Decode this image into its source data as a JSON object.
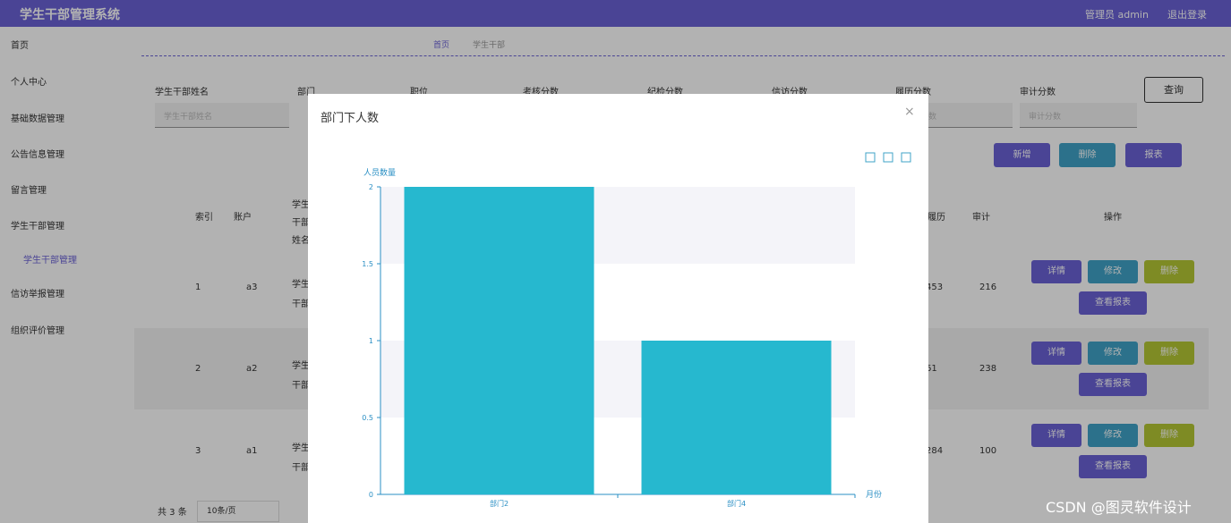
{
  "header": {
    "title": "学生干部管理系统",
    "user": "管理员 admin",
    "logout": "退出登录"
  },
  "sidebar": {
    "items": [
      "首页",
      "个人中心",
      "基础数据管理",
      "公告信息管理",
      "留言管理",
      "学生干部管理",
      "学生干部管理",
      "信访举报管理",
      "组织评价管理"
    ]
  },
  "breadcrumb": [
    "首页",
    "学生干部"
  ],
  "filters": {
    "labels": [
      "学生干部姓名",
      "部门",
      "职位",
      "考核分数",
      "纪检分数",
      "信访分数",
      "履历分数",
      "审计分数"
    ],
    "placeholders": [
      "学生干部姓名",
      "履历分数",
      "审计分数"
    ],
    "query": "查询"
  },
  "toolbar": [
    "新增",
    "删除",
    "报表"
  ],
  "table": {
    "headers": [
      "索引",
      "账户",
      "学生干部姓名",
      "履历",
      "审计",
      "操作"
    ],
    "rows": [
      [
        1,
        "a3",
        "学生干部姓名",
        453,
        216
      ],
      [
        2,
        "a2",
        "学生干部姓名",
        61,
        238
      ],
      [
        3,
        "a1",
        "学生干部姓名",
        284,
        100
      ]
    ],
    "actions": [
      "详情",
      "修改",
      "删除",
      "查看报表"
    ]
  },
  "pagination": {
    "total": "共 3 条",
    "size": "10条/页"
  },
  "modal": {
    "title": "部门下人数",
    "close": "×"
  },
  "chart_data": {
    "type": "bar",
    "y_label": "人员数量",
    "x_label": "月份",
    "categories": [
      "部门2",
      "部门4"
    ],
    "values": [
      2,
      1
    ],
    "color": "#26b8cf",
    "ylim": [
      0,
      2
    ],
    "yticks": [
      0,
      0.5,
      1,
      1.5,
      2
    ],
    "stripes": true
  },
  "watermark": "CSDN @图灵软件设计"
}
